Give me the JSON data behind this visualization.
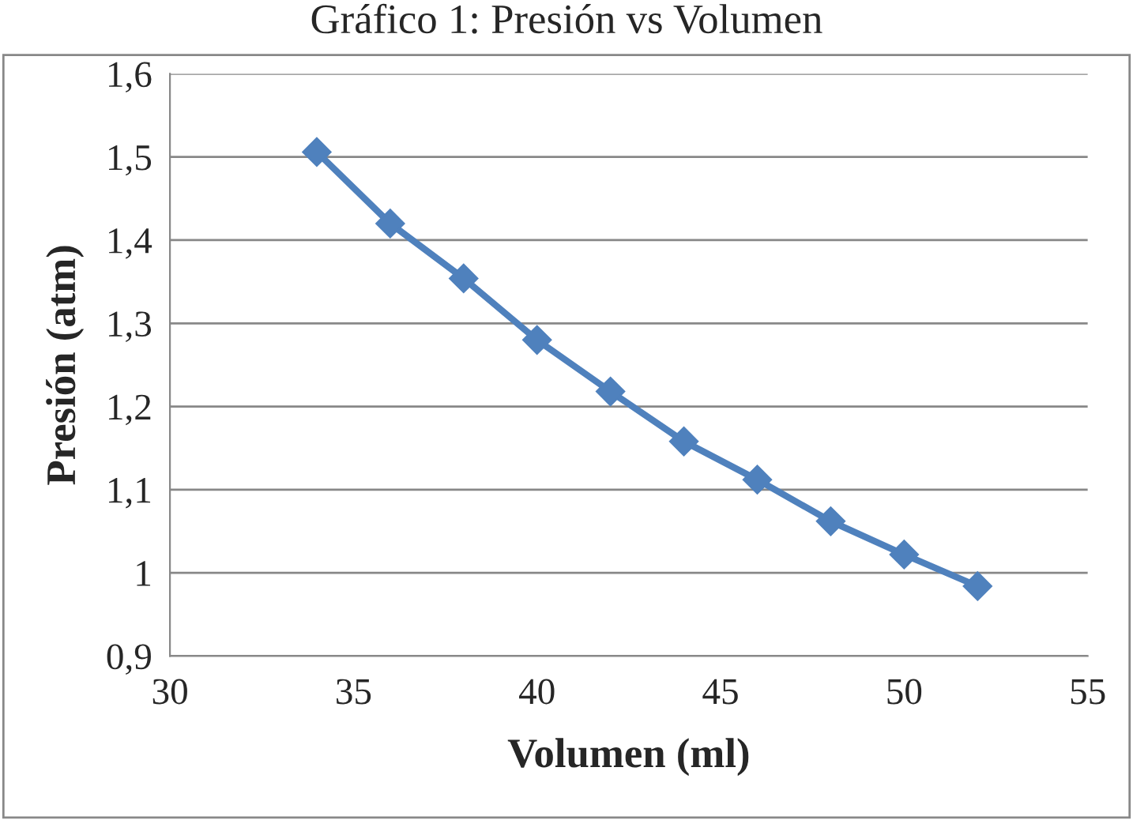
{
  "chart_data": {
    "type": "line",
    "title": "Gráfico 1: Presión vs Volumen",
    "xlabel": "Volumen (ml)",
    "ylabel": "Presión (atm)",
    "x": [
      34,
      36,
      38,
      40,
      42,
      44,
      46,
      48,
      50,
      52
    ],
    "series": [
      {
        "color": "#4f81bd",
        "values": [
          1.506,
          1.42,
          1.354,
          1.28,
          1.218,
          1.158,
          1.112,
          1.062,
          1.022,
          0.984
        ]
      }
    ],
    "xlim": [
      30,
      55
    ],
    "xticks": [
      30,
      35,
      40,
      45,
      50,
      55
    ],
    "ylim": [
      0.9,
      1.6
    ],
    "yticks": [
      {
        "value": 0.9,
        "label": "0,9"
      },
      {
        "value": 1,
        "label": "1"
      },
      {
        "value": 1.1,
        "label": "1,1"
      },
      {
        "value": 1.2,
        "label": "1,2"
      },
      {
        "value": 1.3,
        "label": "1,3"
      },
      {
        "value": 1.4,
        "label": "1,4"
      },
      {
        "value": 1.5,
        "label": "1,5"
      },
      {
        "value": 1.6,
        "label": "1,6"
      }
    ],
    "grid": "y",
    "marker": "diamond",
    "line_style": "solid"
  }
}
